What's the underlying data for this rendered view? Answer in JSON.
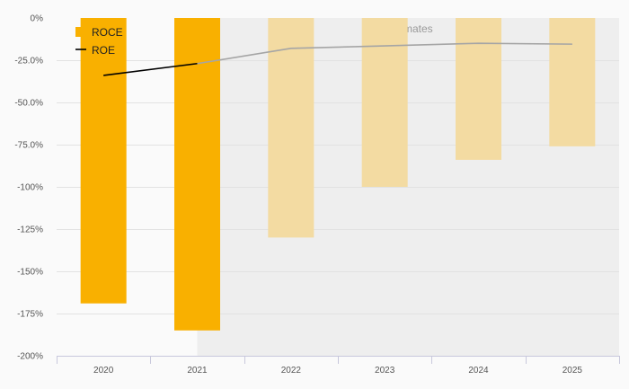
{
  "chart_data": {
    "type": "bar",
    "categories": [
      "2020",
      "2021",
      "2022",
      "2023",
      "2024",
      "2025"
    ],
    "estimated_from": "2021",
    "estimates_label": "Estimates",
    "series": [
      {
        "name": "ROCE",
        "type": "bar",
        "values": [
          -169,
          -185,
          -130,
          -100,
          -84,
          -76
        ],
        "color": "#f9b000",
        "estimate_color": "#f3dba2"
      },
      {
        "name": "ROE",
        "type": "line",
        "values": [
          -34,
          -27,
          -18,
          -16.5,
          -15,
          -15.5
        ],
        "color": "#000000",
        "estimate_color": "#a5a5a5"
      }
    ],
    "ylim": [
      -200,
      0
    ],
    "yticks": [
      0,
      -25,
      -50,
      -75,
      -100,
      -125,
      -150,
      -175,
      -200
    ],
    "ytick_labels": [
      "0%",
      "-25.0%",
      "-50.0%",
      "-75.0%",
      "-100%",
      "-125%",
      "-150%",
      "-175%",
      "-200%"
    ],
    "legend_position": "top-left",
    "grid": true,
    "colors": {
      "estimate_background": "#eeeeee",
      "plot_background": "#fafafa",
      "grid": "#e2e2e2"
    }
  }
}
